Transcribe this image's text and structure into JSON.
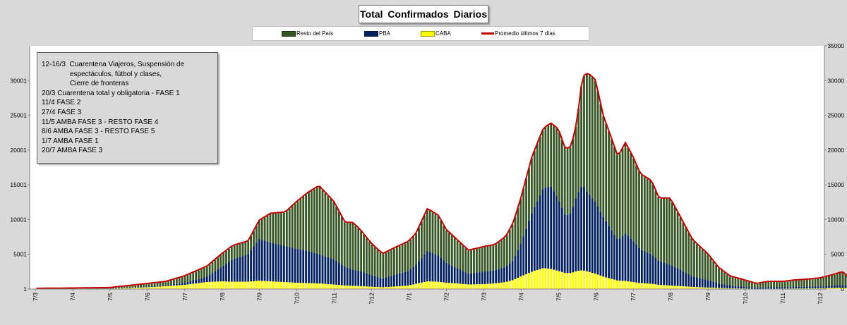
{
  "chart_data": {
    "type": "bar",
    "title": "Total  Confirmados  Diarios",
    "legend_placement": "top",
    "legend": [
      {
        "name": "Resto del País",
        "kind": "bar",
        "color": "#375623"
      },
      {
        "name": "PBA",
        "kind": "bar",
        "color": "#002060"
      },
      {
        "name": "CABA",
        "kind": "bar",
        "color": "#ffff00"
      },
      {
        "name": "Promedio últimos 7 días",
        "kind": "line",
        "color": "#c00000"
      }
    ],
    "x_ticks": [
      "7/3",
      "7/4",
      "7/5",
      "7/6",
      "7/7",
      "7/8",
      "7/9",
      "7/10",
      "7/11",
      "7/12",
      "7/1",
      "7/2",
      "7/3",
      "7/4",
      "7/5",
      "7/6",
      "7/7",
      "7/8",
      "7/9",
      "7/10",
      "7/11",
      "7/12"
    ],
    "y_left_ticks": [
      "1",
      "5001",
      "10001",
      "15001",
      "20001",
      "25001",
      "30001"
    ],
    "y_right_ticks": [
      "0",
      "5000",
      "10000",
      "15000",
      "20000",
      "25000",
      "30000",
      "35000"
    ],
    "ylim_left": [
      1,
      35001
    ],
    "ylim_right": [
      0,
      35000
    ],
    "grid": false,
    "series_anchors": {
      "months": [
        0,
        1,
        2,
        3,
        3.5,
        4,
        4.3,
        4.6,
        5,
        5.3,
        5.7,
        6,
        6.3,
        6.7,
        7,
        7.3,
        7.6,
        8,
        8.3,
        8.5,
        8.7,
        9,
        9.3,
        9.6,
        10,
        10.2,
        10.5,
        10.8,
        11,
        11.3,
        11.6,
        12,
        12.3,
        12.6,
        12.8,
        13,
        13.3,
        13.6,
        13.8,
        14,
        14.2,
        14.35,
        14.5,
        14.65,
        14.8,
        15,
        15.2,
        15.4,
        15.6,
        15.8,
        16,
        16.2,
        16.5,
        16.7,
        17,
        17.3,
        17.6,
        18,
        18.3,
        18.6,
        19,
        19.3,
        19.6,
        20,
        20.3,
        20.6,
        21,
        21.3,
        21.6,
        21.7,
        21.8
      ],
      "total": [
        0,
        50,
        120,
        700,
        1000,
        1800,
        2500,
        3200,
        5000,
        6200,
        6800,
        9800,
        10800,
        11000,
        12500,
        13800,
        14800,
        12500,
        9500,
        9500,
        8500,
        6500,
        5000,
        5800,
        6800,
        8000,
        11500,
        10500,
        8500,
        7000,
        5500,
        6000,
        6300,
        7500,
        9500,
        13000,
        19000,
        23000,
        23800,
        23000,
        20000,
        20500,
        24000,
        30500,
        31000,
        30000,
        25000,
        22000,
        19000,
        21000,
        19000,
        16500,
        15500,
        13000,
        13000,
        10000,
        7000,
        5000,
        3000,
        1800,
        1200,
        700,
        1000,
        1000,
        1200,
        1300,
        1500,
        1900,
        2400,
        2000,
        1300
      ],
      "pba": [
        0,
        20,
        60,
        350,
        500,
        900,
        1300,
        1800,
        3200,
        4300,
        5000,
        7200,
        6700,
        6200,
        5800,
        5500,
        5000,
        4300,
        3200,
        2800,
        2600,
        2000,
        1500,
        2000,
        2600,
        3500,
        5500,
        4800,
        3800,
        3000,
        2200,
        2500,
        2700,
        3200,
        4200,
        6500,
        11000,
        14500,
        14800,
        13000,
        10500,
        11000,
        13500,
        15000,
        13800,
        12500,
        10500,
        8700,
        7000,
        8000,
        7000,
        5700,
        5000,
        4000,
        3500,
        2700,
        1800,
        1300,
        800,
        500,
        300,
        200,
        250,
        250,
        300,
        330,
        380,
        470,
        600,
        500,
        350
      ],
      "caba": [
        0,
        10,
        40,
        250,
        400,
        600,
        800,
        1000,
        1100,
        1050,
        1050,
        1200,
        1100,
        1000,
        900,
        850,
        800,
        650,
        500,
        450,
        420,
        330,
        250,
        350,
        500,
        750,
        1100,
        1050,
        900,
        800,
        650,
        700,
        800,
        1000,
        1300,
        1800,
        2500,
        3000,
        2900,
        2600,
        2300,
        2300,
        2600,
        2700,
        2500,
        2200,
        1800,
        1500,
        1200,
        1150,
        1000,
        850,
        750,
        600,
        500,
        400,
        300,
        200,
        150,
        100,
        70,
        50,
        60,
        60,
        80,
        90,
        110,
        140,
        180,
        150,
        100
      ]
    }
  }
}
